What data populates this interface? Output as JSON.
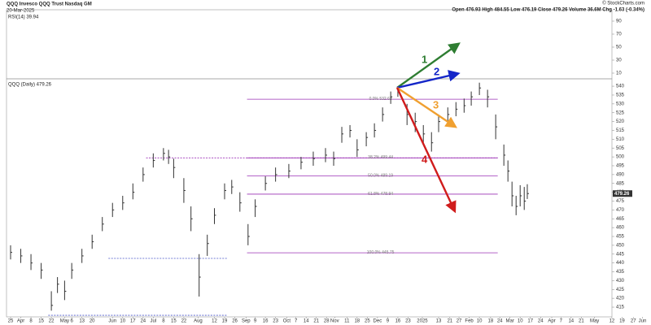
{
  "header": {
    "symbol": "QQQ Invesco QQQ Trust Nasdaq GM",
    "date": "20-Mar-2025",
    "quote": "Open 476.93 High 484.55 Low 476.19 Close 479.26 Volume 36.6M Chg -1.63 (-0.34%)",
    "brand": "© StockCharts.com"
  },
  "chart_data": {
    "type": "ohlc",
    "price_label": "QQQ (Daily) 479.26",
    "x": [
      0,
      1,
      2,
      3,
      4,
      4.6,
      5.3,
      6,
      7,
      8,
      9,
      10,
      11,
      12,
      13,
      14,
      15,
      15.5,
      16,
      17,
      17.7,
      18.5,
      19.3,
      20,
      21,
      21.7,
      22.5,
      23.3,
      24,
      25,
      26,
      27.3,
      28.5,
      29.7,
      30.9,
      31.7,
      32.5,
      33.3,
      34,
      34.9,
      35.7,
      36.5,
      37.3,
      38,
      38.9,
      39.7,
      40.5,
      41.3,
      42,
      42.9,
      43.7,
      44.5,
      45.2,
      46,
      46.8,
      47.6,
      48.4,
      48.8,
      49.2,
      49.6,
      50,
      50.4,
      50.7
    ],
    "high": [
      450,
      448,
      445,
      440,
      424,
      432,
      430,
      440,
      448,
      456,
      466,
      474,
      478,
      485,
      494,
      502,
      505,
      504,
      499,
      488,
      472,
      445,
      456,
      471,
      485,
      487,
      480,
      462,
      476,
      489,
      494,
      496,
      500,
      503,
      505,
      503,
      517,
      518,
      510,
      514,
      519,
      528,
      537,
      540,
      530,
      525,
      518,
      514,
      524,
      528,
      531,
      533,
      537,
      542,
      538,
      524,
      507,
      498,
      486,
      478,
      484,
      483,
      484.55
    ],
    "low": [
      442,
      440,
      436,
      431,
      413,
      423,
      419,
      431,
      440,
      448,
      458,
      466,
      470,
      476,
      486,
      494,
      498,
      496,
      488,
      474,
      458,
      421,
      444,
      462,
      476,
      479,
      469,
      450,
      466,
      481,
      486,
      488,
      493,
      495,
      497,
      495,
      508,
      511,
      500,
      506,
      511,
      520,
      530,
      534,
      518,
      514,
      508,
      503,
      514,
      520,
      523,
      525,
      529,
      535,
      528,
      510,
      495,
      486,
      472,
      467,
      472,
      470,
      476.19
    ],
    "close": [
      446,
      444,
      440,
      436,
      416,
      428,
      424,
      436,
      444,
      452,
      462,
      470,
      474,
      480,
      490,
      498,
      502,
      500,
      494,
      481,
      465,
      432,
      451,
      467,
      481,
      483,
      474,
      455,
      472,
      485,
      490,
      492,
      497,
      499,
      501,
      499,
      513,
      515,
      504,
      511,
      515,
      524,
      534,
      538,
      524,
      520,
      513,
      508,
      520,
      524,
      527,
      529,
      534,
      539,
      534,
      517,
      501,
      492,
      478,
      472,
      478,
      475,
      479.26
    ],
    "color": "#333333",
    "xlim": [
      -0.4,
      62.2
    ],
    "ylim": [
      409.5,
      542.8
    ],
    "yticks": [
      540,
      535,
      530,
      525,
      520,
      515,
      510,
      505,
      500,
      495,
      490,
      485,
      480,
      475,
      470,
      465,
      460,
      455,
      450,
      445,
      440,
      435,
      430,
      425,
      420,
      415
    ],
    "last_price": {
      "value": 479.26,
      "label": "479.26"
    },
    "xticks": [
      {
        "value": 0,
        "label": "25"
      },
      {
        "value": 1,
        "label": "Apr"
      },
      {
        "value": 2,
        "label": "8"
      },
      {
        "value": 3,
        "label": "15"
      },
      {
        "value": 4,
        "label": "22"
      },
      {
        "value": 5.3,
        "label": "May"
      },
      {
        "value": 6,
        "label": "6"
      },
      {
        "value": 7,
        "label": "13"
      },
      {
        "value": 8,
        "label": "20"
      },
      {
        "value": 10,
        "label": "Jun"
      },
      {
        "value": 11,
        "label": "10"
      },
      {
        "value": 12,
        "label": "17"
      },
      {
        "value": 13,
        "label": "24"
      },
      {
        "value": 14,
        "label": "Jul"
      },
      {
        "value": 15,
        "label": "8"
      },
      {
        "value": 16,
        "label": "15"
      },
      {
        "value": 17,
        "label": "22"
      },
      {
        "value": 18.4,
        "label": "Aug"
      },
      {
        "value": 20,
        "label": "12"
      },
      {
        "value": 21,
        "label": "19"
      },
      {
        "value": 22,
        "label": "26"
      },
      {
        "value": 23.1,
        "label": "Sep"
      },
      {
        "value": 24,
        "label": "9"
      },
      {
        "value": 25,
        "label": "16"
      },
      {
        "value": 26,
        "label": "23"
      },
      {
        "value": 27.1,
        "label": "Oct"
      },
      {
        "value": 28,
        "label": "7"
      },
      {
        "value": 29,
        "label": "14"
      },
      {
        "value": 30,
        "label": "21"
      },
      {
        "value": 31,
        "label": "28"
      },
      {
        "value": 31.8,
        "label": "Nov"
      },
      {
        "value": 33,
        "label": "11"
      },
      {
        "value": 34,
        "label": "18"
      },
      {
        "value": 35,
        "label": "25"
      },
      {
        "value": 36,
        "label": "Dec"
      },
      {
        "value": 37,
        "label": "9"
      },
      {
        "value": 38,
        "label": "16"
      },
      {
        "value": 39,
        "label": "23"
      },
      {
        "value": 40.4,
        "label": "2025"
      },
      {
        "value": 42,
        "label": "13"
      },
      {
        "value": 43.1,
        "label": "21"
      },
      {
        "value": 44,
        "label": "27"
      },
      {
        "value": 45,
        "label": "Feb"
      },
      {
        "value": 46,
        "label": "10"
      },
      {
        "value": 47.1,
        "label": "18"
      },
      {
        "value": 48,
        "label": "24"
      },
      {
        "value": 49,
        "label": "Mar"
      },
      {
        "value": 50,
        "label": "10"
      },
      {
        "value": 51,
        "label": "17"
      },
      {
        "value": 52,
        "label": "24"
      },
      {
        "value": 53.1,
        "label": "Apr"
      },
      {
        "value": 54,
        "label": "7"
      },
      {
        "value": 55,
        "label": "14"
      },
      {
        "value": 56,
        "label": "21"
      },
      {
        "value": 57.3,
        "label": "May"
      },
      {
        "value": 59,
        "label": "12"
      },
      {
        "value": 60,
        "label": "19"
      },
      {
        "value": 61.1,
        "label": "27"
      },
      {
        "value": 62,
        "label": "Jun"
      }
    ],
    "fib_levels": {
      "start": 23.2,
      "end": 47.8,
      "color": "#9b30b5",
      "levels": [
        {
          "value": 532.63,
          "label": "0.0% 532.63"
        },
        {
          "value": 499.44,
          "label": "38.2% 499.44"
        },
        {
          "value": 489.19,
          "label": "50.0% 489.19"
        },
        {
          "value": 478.94,
          "label": "61.8% 478.94"
        },
        {
          "value": 445.75,
          "label": "100.0% 445.75"
        }
      ]
    },
    "hlines": [
      {
        "value": 499.44,
        "start": 13.3,
        "end": 47.8,
        "color": "#9b30b5"
      },
      {
        "value": 442.6,
        "start": 9.6,
        "end": 21.3,
        "color": "#4a55c8"
      },
      {
        "value": 410.4,
        "start": 3.7,
        "end": 21.3,
        "color": "#4a55c8"
      }
    ],
    "rsi": {
      "label": "RSI(14) 39.94",
      "ylim": [
        0,
        100
      ],
      "yticks": [
        90,
        70,
        50,
        30,
        10
      ]
    },
    "annotations": [
      "1",
      "2",
      "3",
      "4"
    ]
  }
}
